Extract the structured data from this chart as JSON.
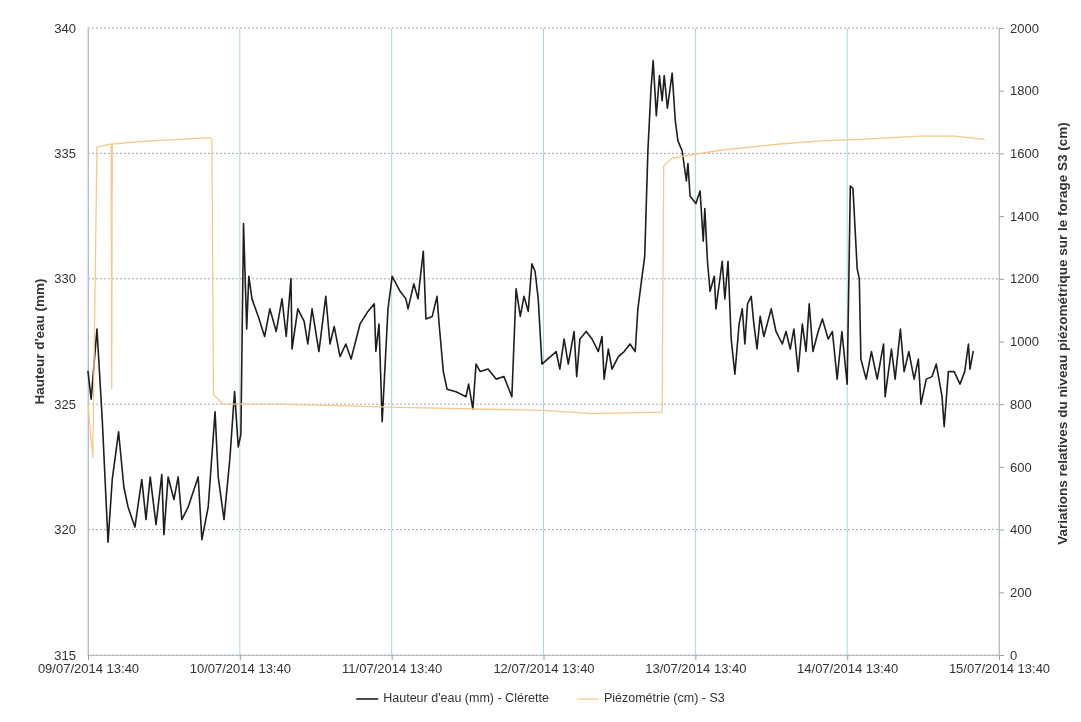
{
  "chart_data": {
    "type": "line",
    "ylabel": "Hauteur d'eau (mm)",
    "y2label": "Variations relatives du niveau piézométrique sur le forage S3 (cm)",
    "xlim": [
      "2014-07-09T13:40",
      "2014-07-15T13:40"
    ],
    "xticks": [
      {
        "value": "2014-07-09T13:40",
        "label": "09/07/2014 13:40"
      },
      {
        "value": "2014-07-10T13:40",
        "label": "10/07/2014 13:40"
      },
      {
        "value": "2014-07-11T13:40",
        "label": "11/07/2014 13:40"
      },
      {
        "value": "2014-07-12T13:40",
        "label": "12/07/2014 13:40"
      },
      {
        "value": "2014-07-13T13:40",
        "label": "13/07/2014 13:40"
      },
      {
        "value": "2014-07-14T13:40",
        "label": "14/07/2014 13:40"
      },
      {
        "value": "2014-07-15T13:40",
        "label": "15/07/2014 13:40"
      }
    ],
    "ylim": [
      315,
      340
    ],
    "yticks": [
      315,
      320,
      325,
      330,
      335,
      340
    ],
    "y2lim": [
      0,
      2000
    ],
    "y2ticks": [
      0,
      200,
      400,
      600,
      800,
      1000,
      1200,
      1400,
      1600,
      1800,
      2000
    ],
    "grid": true,
    "legend": "bottom",
    "series": [
      {
        "name": "Hauteur d'eau (mm) - Clérette",
        "color": "#1e1e1e",
        "x": [
          "2014-07-09T13:40",
          "2014-07-09T14:10",
          "2014-07-09T15:05",
          "2014-07-09T15:55",
          "2014-07-09T16:50",
          "2014-07-09T17:30",
          "2014-07-09T18:30",
          "2014-07-09T19:20",
          "2014-07-09T20:00",
          "2014-07-09T21:05",
          "2014-07-09T22:10",
          "2014-07-09T22:50",
          "2014-07-09T23:30",
          "2014-07-10T00:25",
          "2014-07-10T01:20",
          "2014-07-10T01:40",
          "2014-07-10T02:20",
          "2014-07-10T03:15",
          "2014-07-10T03:55",
          "2014-07-10T04:30",
          "2014-07-10T05:30",
          "2014-07-10T07:05",
          "2014-07-10T07:40",
          "2014-07-10T08:40",
          "2014-07-10T09:45",
          "2014-07-10T10:15",
          "2014-07-10T11:10",
          "2014-07-10T12:05",
          "2014-07-10T12:50",
          "2014-07-10T13:25",
          "2014-07-10T13:50",
          "2014-07-10T14:15",
          "2014-07-10T14:45",
          "2014-07-10T15:05",
          "2014-07-10T15:35",
          "2014-07-10T16:35",
          "2014-07-10T17:35",
          "2014-07-10T18:25",
          "2014-07-10T19:25",
          "2014-07-10T20:20",
          "2014-07-10T21:00",
          "2014-07-10T21:45",
          "2014-07-10T21:55",
          "2014-07-10T22:50",
          "2014-07-10T23:50",
          "2014-07-11T00:25",
          "2014-07-11T01:05",
          "2014-07-11T02:10",
          "2014-07-11T03:15",
          "2014-07-11T03:55",
          "2014-07-11T04:35",
          "2014-07-11T05:30",
          "2014-07-11T06:25",
          "2014-07-11T07:15",
          "2014-07-11T08:40",
          "2014-07-11T09:55",
          "2014-07-11T10:55",
          "2014-07-11T11:10",
          "2014-07-11T11:40",
          "2014-07-11T12:10",
          "2014-07-11T13:05",
          "2014-07-11T13:45",
          "2014-07-11T15:00",
          "2014-07-11T15:55",
          "2014-07-11T16:15",
          "2014-07-11T17:10",
          "2014-07-11T17:50",
          "2014-07-11T18:10",
          "2014-07-11T18:40",
          "2014-07-11T19:05",
          "2014-07-11T20:05",
          "2014-07-11T20:50",
          "2014-07-11T21:10",
          "2014-07-11T21:50",
          "2014-07-11T22:25",
          "2014-07-11T23:50",
          "2014-07-12T01:25",
          "2014-07-12T01:50",
          "2014-07-12T02:30",
          "2014-07-12T03:00",
          "2014-07-12T03:40",
          "2014-07-12T04:55",
          "2014-07-12T06:10",
          "2014-07-12T07:25",
          "2014-07-12T08:40",
          "2014-07-12T09:20",
          "2014-07-12T10:00",
          "2014-07-12T10:35",
          "2014-07-12T11:15",
          "2014-07-12T11:50",
          "2014-07-12T12:20",
          "2014-07-12T12:50",
          "2014-07-12T13:25",
          "2014-07-12T15:40",
          "2014-07-12T16:15",
          "2014-07-12T16:55",
          "2014-07-12T17:35",
          "2014-07-12T18:30",
          "2014-07-12T18:55",
          "2014-07-12T19:25",
          "2014-07-12T20:25",
          "2014-07-12T21:20",
          "2014-07-12T22:20",
          "2014-07-12T22:55",
          "2014-07-12T23:15",
          "2014-07-12T23:55",
          "2014-07-13T00:30",
          "2014-07-13T01:30",
          "2014-07-13T02:25",
          "2014-07-13T03:20",
          "2014-07-13T04:10",
          "2014-07-13T04:35",
          "2014-07-13T05:15",
          "2014-07-13T05:40",
          "2014-07-13T06:10",
          "2014-07-13T06:40",
          "2014-07-13T07:00",
          "2014-07-13T07:30",
          "2014-07-13T08:00",
          "2014-07-13T08:25",
          "2014-07-13T08:45",
          "2014-07-13T09:15",
          "2014-07-13T10:00",
          "2014-07-13T10:30",
          "2014-07-13T10:55",
          "2014-07-13T11:35",
          "2014-07-13T12:15",
          "2014-07-13T12:30",
          "2014-07-13T12:50",
          "2014-07-13T13:45",
          "2014-07-13T14:25",
          "2014-07-13T14:55",
          "2014-07-13T15:10",
          "2014-07-13T15:35",
          "2014-07-13T16:00",
          "2014-07-13T16:40",
          "2014-07-13T16:55",
          "2014-07-13T17:55",
          "2014-07-13T18:20",
          "2014-07-13T18:50",
          "2014-07-13T19:20",
          "2014-07-13T19:55",
          "2014-07-13T20:35",
          "2014-07-13T21:05",
          "2014-07-13T21:30",
          "2014-07-13T21:55",
          "2014-07-13T22:30",
          "2014-07-13T22:55",
          "2014-07-13T23:25",
          "2014-07-13T23:55",
          "2014-07-14T00:30",
          "2014-07-14T01:40",
          "2014-07-14T02:25",
          "2014-07-14T03:25",
          "2014-07-14T04:00",
          "2014-07-14T04:40",
          "2014-07-14T05:15",
          "2014-07-14T05:55",
          "2014-07-14T06:35",
          "2014-07-14T07:10",
          "2014-07-14T07:40",
          "2014-07-14T08:15",
          "2014-07-14T09:05",
          "2014-07-14T09:45",
          "2014-07-14T10:40",
          "2014-07-14T11:20",
          "2014-07-14T12:05",
          "2014-07-14T12:50",
          "2014-07-14T13:40",
          "2014-07-14T14:10",
          "2014-07-14T14:35",
          "2014-07-14T15:15",
          "2014-07-14T15:35",
          "2014-07-14T15:50",
          "2014-07-14T16:40",
          "2014-07-14T17:30",
          "2014-07-14T18:25",
          "2014-07-14T19:25",
          "2014-07-14T19:40",
          "2014-07-14T20:40",
          "2014-07-14T21:15",
          "2014-07-14T22:05",
          "2014-07-14T22:40",
          "2014-07-14T23:25",
          "2014-07-15T00:15",
          "2014-07-15T00:55",
          "2014-07-15T01:20",
          "2014-07-15T02:10",
          "2014-07-15T03:05",
          "2014-07-15T03:45",
          "2014-07-15T04:40",
          "2014-07-15T05:00",
          "2014-07-15T05:40",
          "2014-07-15T06:35",
          "2014-07-15T07:30",
          "2014-07-15T08:15",
          "2014-07-15T08:50",
          "2014-07-15T09:05",
          "2014-07-15T09:35"
        ],
        "values": [
          326.3,
          325.2,
          328.0,
          324.4,
          319.5,
          322.0,
          323.9,
          321.7,
          320.9,
          320.1,
          322.0,
          320.4,
          322.1,
          320.2,
          322.2,
          319.8,
          322.1,
          321.2,
          322.1,
          320.4,
          320.9,
          322.1,
          319.6,
          320.9,
          324.7,
          322.1,
          320.4,
          322.8,
          325.5,
          323.3,
          323.8,
          332.2,
          328.0,
          330.1,
          329.2,
          328.5,
          327.7,
          328.8,
          327.9,
          329.2,
          327.7,
          330.0,
          327.2,
          328.8,
          328.3,
          327.4,
          328.8,
          327.1,
          329.3,
          327.4,
          328.1,
          326.9,
          327.4,
          326.8,
          328.2,
          328.7,
          329.0,
          327.1,
          328.2,
          324.3,
          328.8,
          330.1,
          329.5,
          329.2,
          328.8,
          329.8,
          329.2,
          330.0,
          331.1,
          328.4,
          328.5,
          329.3,
          328.2,
          326.3,
          325.6,
          325.5,
          325.3,
          325.8,
          324.8,
          326.6,
          326.3,
          326.4,
          326.0,
          326.1,
          325.3,
          329.6,
          328.5,
          329.3,
          328.7,
          330.6,
          330.3,
          329.2,
          326.6,
          327.1,
          326.4,
          327.6,
          326.6,
          327.9,
          326.1,
          327.6,
          327.9,
          327.6,
          327.1,
          327.7,
          326.0,
          327.2,
          326.4,
          326.9,
          327.1,
          327.4,
          327.1,
          328.8,
          330.1,
          330.9,
          335.1,
          337.6,
          338.7,
          336.5,
          338.1,
          337.1,
          338.1,
          336.8,
          338.2,
          336.3,
          335.5,
          335.1,
          333.9,
          334.6,
          333.3,
          333.0,
          333.5,
          331.5,
          332.8,
          330.7,
          329.5,
          330.1,
          328.8,
          330.7,
          329.2,
          330.7,
          327.6,
          326.2,
          328.2,
          328.8,
          327.4,
          329.0,
          329.3,
          328.2,
          327.2,
          328.5,
          327.7,
          328.8,
          327.9,
          327.4,
          327.9,
          327.2,
          328.0,
          326.3,
          328.2,
          327.1,
          329.0,
          327.1,
          327.9,
          328.4,
          327.6,
          327.9,
          326.0,
          327.9,
          325.8,
          333.7,
          333.6,
          330.4,
          330.0,
          326.8,
          326.0,
          327.1,
          326.0,
          327.4,
          325.3,
          327.2,
          326.0,
          328.0,
          326.3,
          327.1,
          326.0,
          326.8,
          325.0,
          326.0,
          326.1,
          326.6,
          325.3,
          324.1,
          326.3,
          326.3,
          325.8,
          326.3,
          327.4,
          326.4,
          327.1
        ]
      },
      {
        "name": "Piézométrie (cm) - S3",
        "color": "#f5c98b",
        "axis": "y2",
        "x": [
          "2014-07-09T13:40",
          "2014-07-09T14:25",
          "2014-07-09T15:05",
          "2014-07-09T16:10",
          "2014-07-09T17:20",
          "2014-07-09T17:25",
          "2014-07-09T17:30",
          "2014-07-09T23:30",
          "2014-07-10T04:15",
          "2014-07-10T08:55",
          "2014-07-10T09:15",
          "2014-07-10T09:30",
          "2014-07-10T11:05",
          "2014-07-10T20:00",
          "2014-07-11T15:00",
          "2014-07-12T13:45",
          "2014-07-12T21:20",
          "2014-07-13T08:25",
          "2014-07-13T08:40",
          "2014-07-13T10:00",
          "2014-07-13T17:35",
          "2014-07-14T03:05",
          "2014-07-14T09:25",
          "2014-07-14T15:45",
          "2014-07-15T01:10",
          "2014-07-15T06:45",
          "2014-07-15T11:20"
        ],
        "values": [
          800,
          630,
          1620,
          1625,
          1630,
          850,
          1630,
          1640,
          1645,
          1650,
          1645,
          830,
          800,
          800,
          790,
          780,
          770,
          775,
          1560,
          1585,
          1610,
          1630,
          1640,
          1645,
          1655,
          1655,
          1645
        ]
      }
    ]
  }
}
